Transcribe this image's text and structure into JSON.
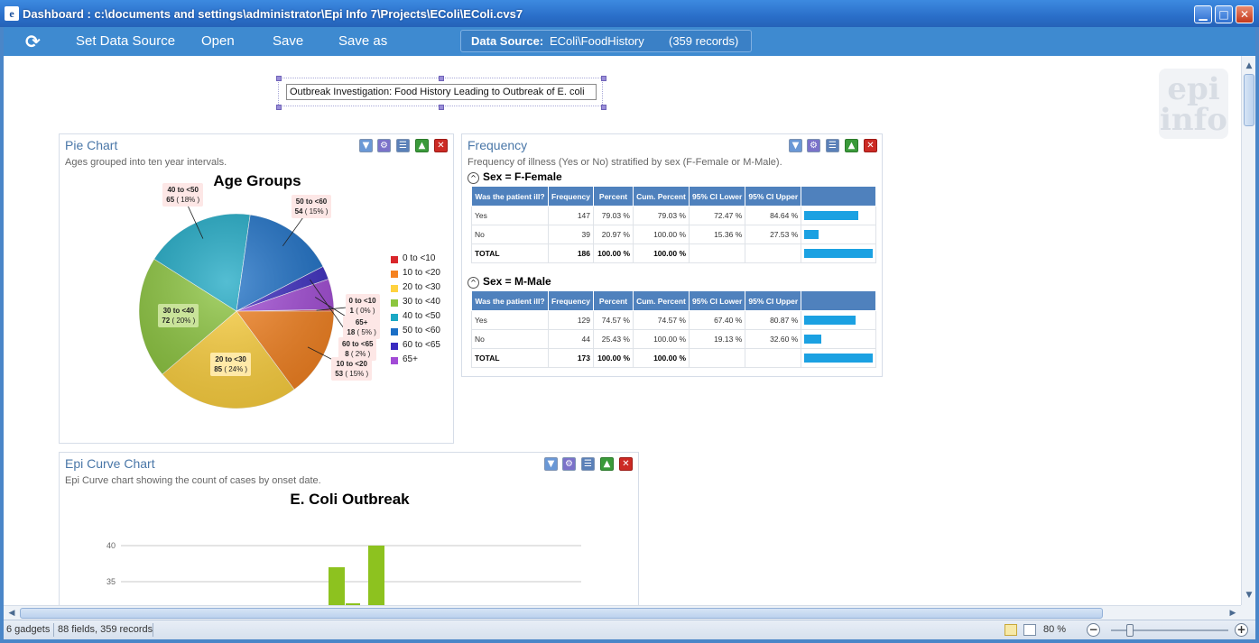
{
  "window": {
    "title": "Dashboard : c:\\documents and settings\\administrator\\Epi Info 7\\Projects\\EColi\\EColi.cvs7",
    "icon_label": "e",
    "minimize_glyph": "▁",
    "maximize_glyph": "□",
    "close_glyph": "✕"
  },
  "toolbar": {
    "refresh_icon": "⟳",
    "set_data_source": "Set Data Source",
    "open": "Open",
    "save": "Save",
    "save_as": "Save as",
    "data_source_label": "Data Source:",
    "data_source_value": "EColi\\FoodHistory",
    "data_source_records": "(359 records)"
  },
  "canvas": {
    "title_text": "Outbreak Investigation:  Food History Leading to Outbreak of E. coli",
    "watermark": "epi\ninfo"
  },
  "tool_glyphs": {
    "filter": "▼",
    "gear": "⚙",
    "props": "☰",
    "up": "▲",
    "close": "✕"
  },
  "pie_gadget": {
    "title": "Pie Chart",
    "description": "Ages grouped into ten year intervals.",
    "chart_data": {
      "type": "pie",
      "title": "Age Groups",
      "categories": [
        "0 to <10",
        "10 to <20",
        "20 to <30",
        "30 to <40",
        "40 to <50",
        "50 to <60",
        "60 to <65",
        "65+"
      ],
      "values": [
        1,
        53,
        85,
        72,
        65,
        54,
        8,
        18
      ],
      "percent_labels": [
        "( 0% )",
        "( 15% )",
        "( 24% )",
        "( 20% )",
        "( 18% )",
        "( 15% )",
        "( 2% )",
        "( 5% )"
      ],
      "colors": [
        "#d9262b",
        "#f58220",
        "#ffd23f",
        "#8cc63e",
        "#1ba8c4",
        "#1b6fc6",
        "#3a2bc0",
        "#a24bd6"
      ],
      "legend": "right"
    }
  },
  "freq_gadget": {
    "title": "Frequency",
    "description": "Frequency of illness (Yes or No) stratified by sex (F-Female or M-Male).",
    "collapse_glyph": "^",
    "columns": [
      "Was the patient ill?",
      "Frequency",
      "Percent",
      "Cum. Percent",
      "95% CI Lower",
      "95% CI Upper"
    ],
    "strata": [
      {
        "label": "Sex = F-Female",
        "rows": [
          {
            "value": "Yes",
            "freq": "147",
            "pct": "79.03 %",
            "cum": "79.03 %",
            "lo": "72.47 %",
            "hi": "84.64 %",
            "bar": 0.79
          },
          {
            "value": "No",
            "freq": "39",
            "pct": "20.97 %",
            "cum": "100.00 %",
            "lo": "15.36 %",
            "hi": "27.53 %",
            "bar": 0.21
          }
        ],
        "total": {
          "value": "TOTAL",
          "freq": "186",
          "pct": "100.00 %",
          "cum": "100.00 %",
          "bar": 1.0
        }
      },
      {
        "label": "Sex = M-Male",
        "rows": [
          {
            "value": "Yes",
            "freq": "129",
            "pct": "74.57 %",
            "cum": "74.57 %",
            "lo": "67.40 %",
            "hi": "80.87 %",
            "bar": 0.75
          },
          {
            "value": "No",
            "freq": "44",
            "pct": "25.43 %",
            "cum": "100.00 %",
            "lo": "19.13 %",
            "hi": "32.60 %",
            "bar": 0.25
          }
        ],
        "total": {
          "value": "TOTAL",
          "freq": "173",
          "pct": "100.00 %",
          "cum": "100.00 %",
          "bar": 1.0
        }
      }
    ]
  },
  "epi_gadget": {
    "title": "Epi Curve Chart",
    "description": "Epi Curve chart showing the count of cases by onset date.",
    "chart_data": {
      "type": "bar",
      "title": "E. Coli Outbreak",
      "y_ticks": [
        "40",
        "35"
      ],
      "ylim": [
        30,
        40
      ],
      "values": [
        37,
        32,
        40
      ],
      "color": "#8dc21f"
    }
  },
  "statusbar": {
    "gadgets": "6 gadgets",
    "fields": "88 fields, 359 records",
    "zoom": "80 %",
    "zoom_level": 0.8,
    "zoom_out": "−",
    "zoom_in": "+"
  },
  "scroll": {
    "up": "▲",
    "down": "▼",
    "left": "◀",
    "right": "▶"
  }
}
